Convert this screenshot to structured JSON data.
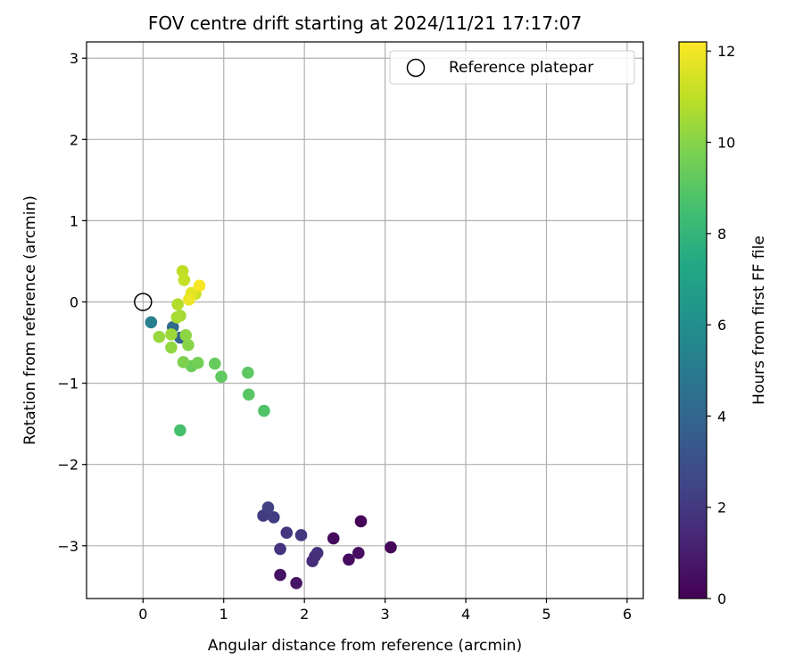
{
  "chart_data": {
    "type": "scatter",
    "title": "FOV centre drift starting at 2024/11/21 17:17:07",
    "xlabel": "Angular distance from reference (arcmin)",
    "ylabel": "Rotation from reference (arcmin)",
    "xlim": [
      -0.7,
      6.2
    ],
    "ylim": [
      -3.65,
      3.2
    ],
    "xticks": [
      0,
      1,
      2,
      3,
      4,
      5,
      6
    ],
    "yticks": [
      -3,
      -2,
      -1,
      0,
      1,
      2,
      3
    ],
    "grid": true,
    "legend": {
      "location": "upper right",
      "entries": [
        "Reference platepar"
      ]
    },
    "reference": {
      "label": "Reference platepar",
      "x": 0,
      "y": 0,
      "marker": "open-circle"
    },
    "colorbar": {
      "label": "Hours from first FF file",
      "range": [
        0,
        12.2
      ],
      "ticks": [
        0,
        2,
        4,
        6,
        8,
        10,
        12
      ],
      "colormap": "viridis"
    },
    "series": [
      {
        "points": [
          {
            "x": 2.7,
            "y": -2.7,
            "t": 0.1
          },
          {
            "x": 3.07,
            "y": -3.02,
            "t": 0.2
          },
          {
            "x": 2.36,
            "y": -2.91,
            "t": 0.3
          },
          {
            "x": 2.55,
            "y": -3.17,
            "t": 0.4
          },
          {
            "x": 2.67,
            "y": -3.09,
            "t": 0.5
          },
          {
            "x": 1.7,
            "y": -3.36,
            "t": 0.6
          },
          {
            "x": 1.9,
            "y": -3.46,
            "t": 0.7
          },
          {
            "x": 2.1,
            "y": -3.19,
            "t": 1.5
          },
          {
            "x": 2.13,
            "y": -3.13,
            "t": 1.6
          },
          {
            "x": 2.16,
            "y": -3.09,
            "t": 1.7
          },
          {
            "x": 1.7,
            "y": -3.04,
            "t": 1.8
          },
          {
            "x": 1.78,
            "y": -2.84,
            "t": 1.9
          },
          {
            "x": 1.96,
            "y": -2.87,
            "t": 2.0
          },
          {
            "x": 1.49,
            "y": -2.63,
            "t": 2.1
          },
          {
            "x": 1.62,
            "y": -2.65,
            "t": 2.2
          },
          {
            "x": 1.55,
            "y": -2.53,
            "t": 2.3
          },
          {
            "x": 0.46,
            "y": -0.44,
            "t": 3.9
          },
          {
            "x": 0.37,
            "y": -0.31,
            "t": 4.2
          },
          {
            "x": 0.1,
            "y": -0.25,
            "t": 5.2
          },
          {
            "x": 0.46,
            "y": -1.58,
            "t": 8.6
          },
          {
            "x": 1.5,
            "y": -1.34,
            "t": 8.8
          },
          {
            "x": 1.31,
            "y": -1.14,
            "t": 9.0
          },
          {
            "x": 1.3,
            "y": -0.87,
            "t": 9.1
          },
          {
            "x": 0.97,
            "y": -0.92,
            "t": 9.2
          },
          {
            "x": 0.89,
            "y": -0.76,
            "t": 9.3
          },
          {
            "x": 0.6,
            "y": -0.79,
            "t": 9.4
          },
          {
            "x": 0.68,
            "y": -0.75,
            "t": 9.6
          },
          {
            "x": 0.5,
            "y": -0.74,
            "t": 9.8
          },
          {
            "x": 0.56,
            "y": -0.53,
            "t": 10.0
          },
          {
            "x": 0.53,
            "y": -0.41,
            "t": 10.1
          },
          {
            "x": 0.35,
            "y": -0.56,
            "t": 10.2
          },
          {
            "x": 0.2,
            "y": -0.43,
            "t": 10.3
          },
          {
            "x": 0.35,
            "y": -0.4,
            "t": 10.4
          },
          {
            "x": 0.46,
            "y": -0.17,
            "t": 10.5
          },
          {
            "x": 0.42,
            "y": -0.19,
            "t": 10.6
          },
          {
            "x": 0.43,
            "y": -0.03,
            "t": 10.8
          },
          {
            "x": 0.49,
            "y": 0.38,
            "t": 11.0
          },
          {
            "x": 0.51,
            "y": 0.27,
            "t": 11.1
          },
          {
            "x": 0.65,
            "y": 0.1,
            "t": 11.3
          },
          {
            "x": 0.6,
            "y": 0.11,
            "t": 11.7
          },
          {
            "x": 0.57,
            "y": 0.03,
            "t": 11.9
          },
          {
            "x": 0.7,
            "y": 0.2,
            "t": 12.1
          }
        ]
      }
    ]
  }
}
